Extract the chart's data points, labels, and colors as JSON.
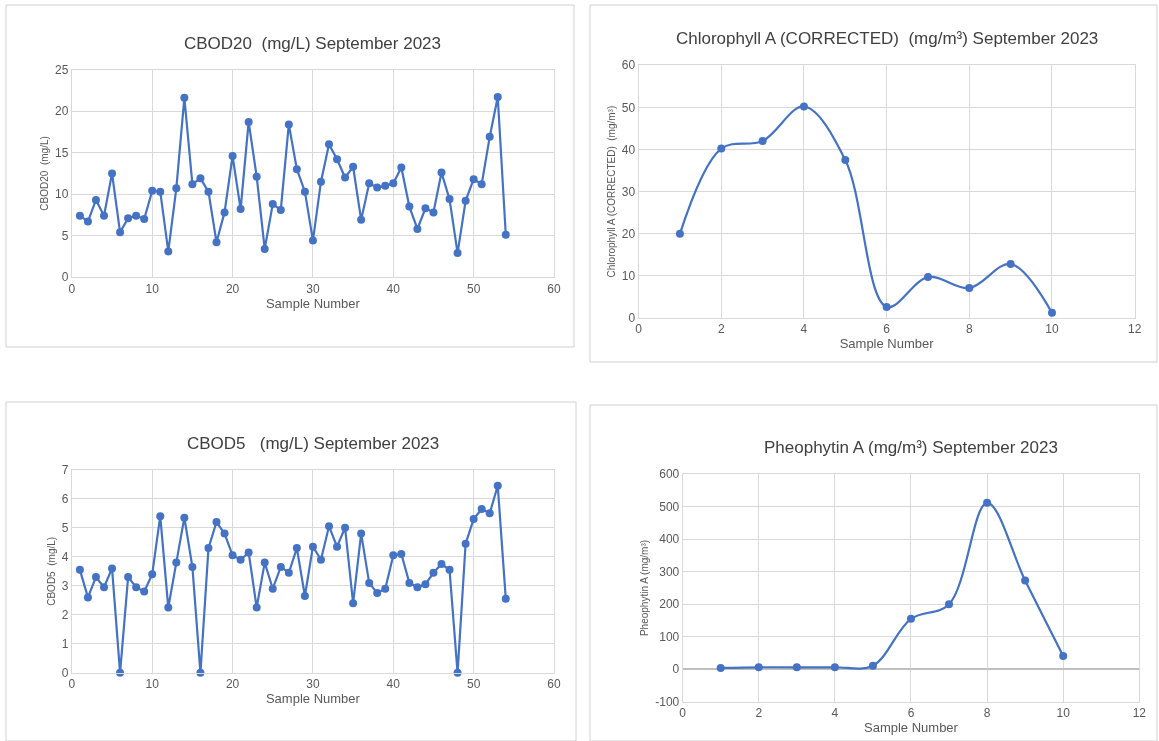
{
  "chart_data": [
    {
      "type": "line",
      "title": "CBOD20  (mg/L) September 2023",
      "xlabel": "Sample Number",
      "ylabel": "CBOD20  (mg/L)",
      "color": "#4472c4",
      "marker": "circle",
      "grid": true,
      "x": [
        1,
        2,
        3,
        4,
        5,
        6,
        7,
        8,
        9,
        10,
        11,
        12,
        13,
        14,
        15,
        16,
        17,
        18,
        19,
        20,
        21,
        22,
        23,
        24,
        25,
        26,
        27,
        28,
        29,
        30,
        31,
        32,
        33,
        34,
        35,
        36,
        37,
        38,
        39,
        40,
        41,
        42,
        43,
        44,
        45,
        46,
        47,
        48,
        49,
        50,
        51,
        52,
        53,
        54
      ],
      "values": [
        7.4,
        6.7,
        9.3,
        7.4,
        12.5,
        5.4,
        7.1,
        7.4,
        7.0,
        10.4,
        10.3,
        3.1,
        10.7,
        21.6,
        11.2,
        11.9,
        10.3,
        4.2,
        7.8,
        14.6,
        8.2,
        18.7,
        12.1,
        3.4,
        8.8,
        8.1,
        18.4,
        13.0,
        10.3,
        4.4,
        11.5,
        16.0,
        14.2,
        12.0,
        13.3,
        6.9,
        11.3,
        10.8,
        11.0,
        11.3,
        13.2,
        8.5,
        5.8,
        8.3,
        7.8,
        12.6,
        9.4,
        2.9,
        9.2,
        11.8,
        11.2,
        16.9,
        21.7,
        5.1
      ],
      "xlim": [
        0,
        60
      ],
      "xticks": [
        0,
        10,
        20,
        30,
        40,
        50,
        60
      ],
      "ylim": [
        0,
        25
      ],
      "yticks": [
        0,
        5,
        10,
        15,
        20,
        25
      ]
    },
    {
      "type": "line",
      "title": "Chlorophyll A (CORRECTED)  (mg/m³) September 2023",
      "xlabel": "Sample Number",
      "ylabel": "Chlorophyll A (CORRECTED)  (mg/m³)",
      "color": "#4472c4",
      "marker": "circle",
      "grid": true,
      "x": [
        1,
        2,
        3,
        4,
        5,
        6,
        7,
        8,
        9,
        10
      ],
      "values": [
        20,
        40.2,
        42,
        50.2,
        37.5,
        2.6,
        9.7,
        7.1,
        12.8,
        1.2
      ],
      "xlim": [
        0,
        12
      ],
      "xticks": [
        0,
        2,
        4,
        6,
        8,
        10,
        12
      ],
      "ylim": [
        0,
        60
      ],
      "yticks": [
        0,
        10,
        20,
        30,
        40,
        50,
        60
      ]
    },
    {
      "type": "line",
      "title": "CBOD5   (mg/L) September 2023",
      "xlabel": "Sample Number",
      "ylabel": "CBOD5  (mg/L)",
      "color": "#4472c4",
      "marker": "circle",
      "grid": true,
      "x": [
        1,
        2,
        3,
        4,
        5,
        6,
        7,
        8,
        9,
        10,
        11,
        12,
        13,
        14,
        15,
        16,
        17,
        18,
        19,
        20,
        21,
        22,
        23,
        24,
        25,
        26,
        27,
        28,
        29,
        30,
        31,
        32,
        33,
        34,
        35,
        36,
        37,
        38,
        39,
        40,
        41,
        42,
        43,
        44,
        45,
        46,
        47,
        48,
        49,
        50,
        51,
        52,
        53,
        54
      ],
      "values": [
        3.55,
        2.6,
        3.3,
        2.95,
        3.6,
        0,
        3.3,
        2.95,
        2.8,
        3.4,
        5.4,
        2.25,
        3.8,
        5.35,
        3.65,
        0,
        4.3,
        5.2,
        4.8,
        4.05,
        3.9,
        4.15,
        2.25,
        3.8,
        2.9,
        3.65,
        3.45,
        4.3,
        2.65,
        4.35,
        3.9,
        5.05,
        4.35,
        5.0,
        2.4,
        4.8,
        3.1,
        2.75,
        2.9,
        4.05,
        4.1,
        3.1,
        2.95,
        3.05,
        3.45,
        3.75,
        3.55,
        0,
        4.45,
        5.3,
        5.65,
        5.5,
        6.45,
        2.55
      ],
      "xlim": [
        0,
        60
      ],
      "xticks": [
        0,
        10,
        20,
        30,
        40,
        50,
        60
      ],
      "ylim": [
        0,
        7
      ],
      "yticks": [
        0,
        1,
        2,
        3,
        4,
        5,
        6,
        7
      ]
    },
    {
      "type": "line",
      "title": "Pheophytin A (mg/m³) September 2023",
      "xlabel": "Sample Number",
      "ylabel": "Pheophytin A (mg/m³)",
      "color": "#4472c4",
      "marker": "circle",
      "grid": true,
      "x": [
        1,
        2,
        3,
        4,
        5,
        6,
        7,
        8,
        9,
        10
      ],
      "values": [
        4,
        6,
        6,
        6,
        11,
        155,
        200,
        512,
        273,
        41
      ],
      "xlim": [
        0,
        12
      ],
      "xticks": [
        0,
        2,
        4,
        6,
        8,
        10,
        12
      ],
      "ylim": [
        -100,
        600
      ],
      "yticks": [
        -100,
        0,
        100,
        200,
        300,
        400,
        500,
        600
      ]
    }
  ]
}
